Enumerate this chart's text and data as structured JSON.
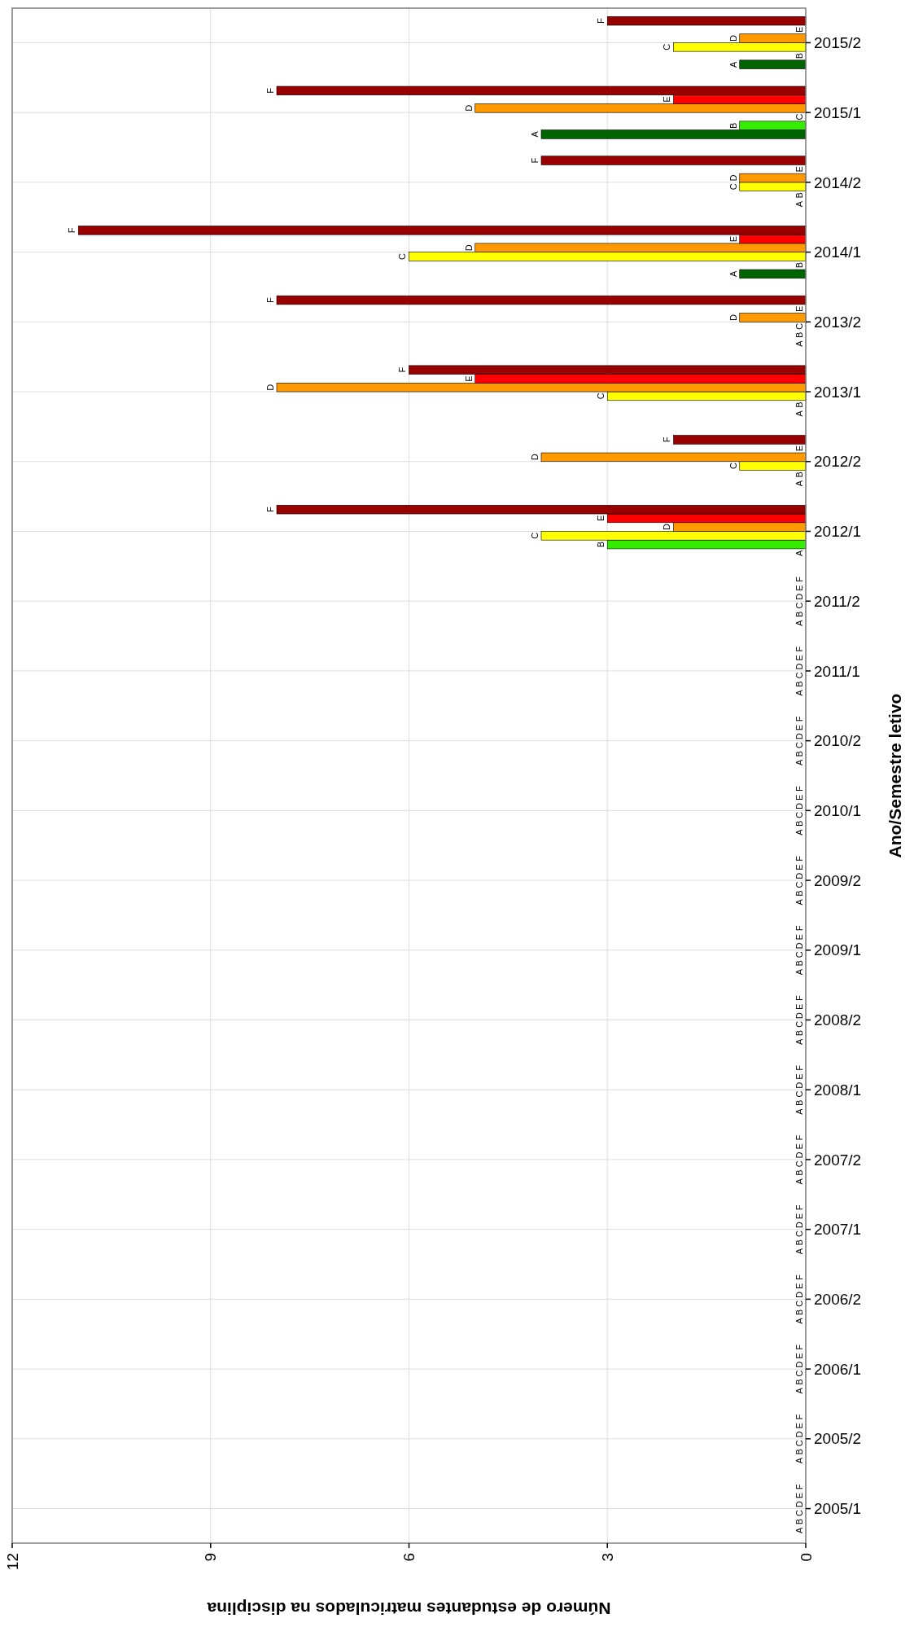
{
  "chart_data": {
    "type": "bar",
    "orientation": "horizontal",
    "xlabel": "Número de estudantes matriculados na disciplina",
    "ylabel": "Ano/Semestre letivo",
    "categories": [
      "2015/2",
      "2015/1",
      "2014/2",
      "2014/1",
      "2013/2",
      "2013/1",
      "2012/2",
      "2012/1",
      "2011/2",
      "2011/1",
      "2010/2",
      "2010/1",
      "2009/2",
      "2009/1",
      "2008/2",
      "2008/1",
      "2007/2",
      "2007/1",
      "2006/2",
      "2006/1",
      "2005/2",
      "2005/1"
    ],
    "series": [
      {
        "name": "A",
        "color": "#006400",
        "values": [
          1,
          4,
          0,
          1,
          0,
          0,
          0,
          0,
          0,
          0,
          0,
          0,
          0,
          0,
          0,
          0,
          0,
          0,
          0,
          0,
          0,
          0
        ]
      },
      {
        "name": "B",
        "color": "#33ee00",
        "values": [
          0,
          1,
          0,
          0,
          0,
          0,
          0,
          3,
          0,
          0,
          0,
          0,
          0,
          0,
          0,
          0,
          0,
          0,
          0,
          0,
          0,
          0
        ]
      },
      {
        "name": "C",
        "color": "#ffff00",
        "values": [
          2,
          0,
          1,
          6,
          0,
          3,
          1,
          4,
          0,
          0,
          0,
          0,
          0,
          0,
          0,
          0,
          0,
          0,
          0,
          0,
          0,
          0
        ]
      },
      {
        "name": "D",
        "color": "#ff9900",
        "values": [
          1,
          5,
          1,
          5,
          1,
          8,
          4,
          2,
          0,
          0,
          0,
          0,
          0,
          0,
          0,
          0,
          0,
          0,
          0,
          0,
          0,
          0
        ]
      },
      {
        "name": "E",
        "color": "#ff0000",
        "values": [
          0,
          2,
          0,
          1,
          0,
          5,
          0,
          3,
          0,
          0,
          0,
          0,
          0,
          0,
          0,
          0,
          0,
          0,
          0,
          0,
          0,
          0
        ]
      },
      {
        "name": "F",
        "color": "#990000",
        "values": [
          3,
          8,
          4,
          11,
          8,
          6,
          2,
          8,
          0,
          0,
          0,
          0,
          0,
          0,
          0,
          0,
          0,
          0,
          0,
          0,
          0,
          0
        ]
      }
    ],
    "xlim": [
      12,
      0
    ],
    "xticks": [
      0,
      3,
      6,
      9,
      12
    ],
    "grid": true
  }
}
